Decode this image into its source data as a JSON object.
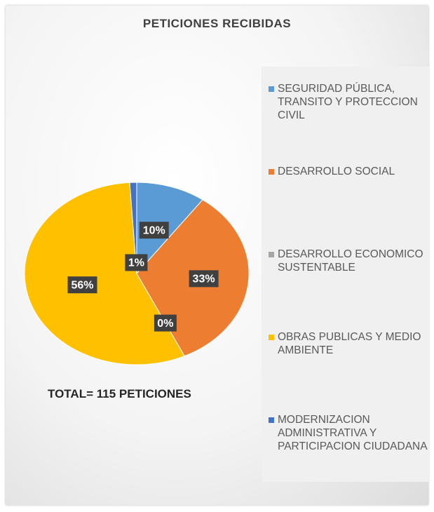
{
  "chart_data": {
    "type": "pie",
    "title": "PETICIONES RECIBIDAS",
    "annotation": "TOTAL= 115 PETICIONES",
    "categories": [
      "SEGURIDAD PÚBLICA, TRANSITO Y PROTECCION CIVIL",
      "DESARROLLO SOCIAL",
      "DESARROLLO ECONOMICO SUSTENTABLE",
      "OBRAS PUBLICAS Y MEDIO AMBIENTE",
      "MODERNIZACION ADMINISTRATIVA Y PARTICIPACION CIUDADANA"
    ],
    "values": [
      10,
      33,
      0,
      56,
      1
    ],
    "value_labels": [
      "10%",
      "33%",
      "0%",
      "56%",
      "1%"
    ],
    "colors": [
      "#5b9bd5",
      "#ed7d31",
      "#a5a5a5",
      "#ffc000",
      "#4472c4"
    ]
  }
}
